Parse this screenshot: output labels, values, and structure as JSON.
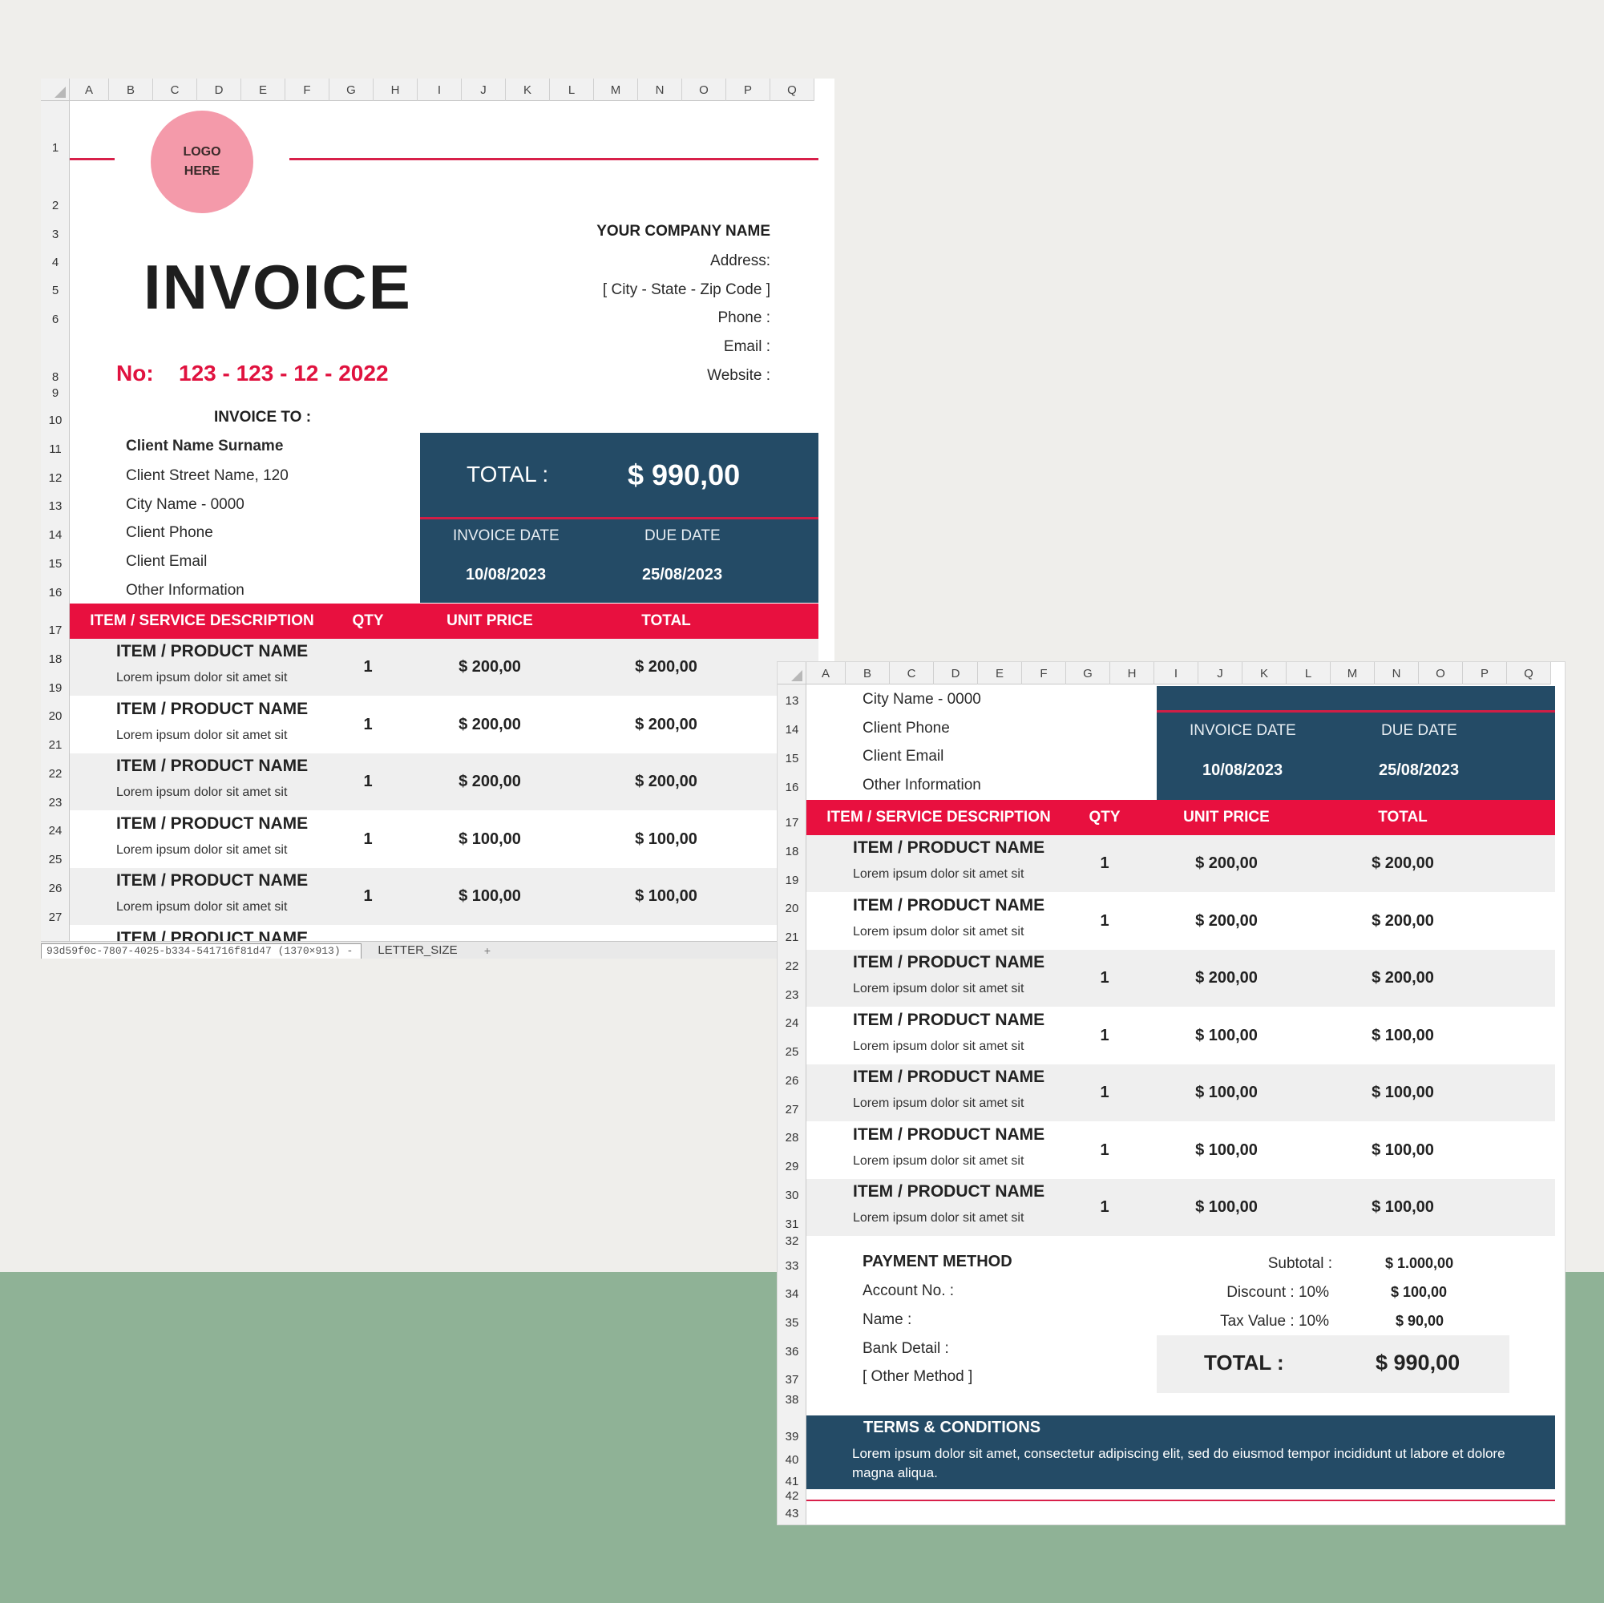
{
  "columns": [
    "A",
    "B",
    "C",
    "D",
    "E",
    "F",
    "G",
    "H",
    "I",
    "J",
    "K",
    "L",
    "M",
    "N",
    "O",
    "P",
    "Q"
  ],
  "logo": {
    "line1": "LOGO",
    "line2": "HERE"
  },
  "invoice_title": "INVOICE",
  "invoice_no": {
    "label": "No:",
    "value": "123 - 123 - 12 - 2022"
  },
  "company": {
    "name": "YOUR COMPANY NAME",
    "address": "Address:",
    "city": "[ City - State - Zip Code ]",
    "phone": "Phone :",
    "email": "Email :",
    "website": "Website :"
  },
  "invoice_to": {
    "label": "INVOICE TO :",
    "name": "Client Name Surname",
    "street": "Client Street Name, 120",
    "city": "City Name - 0000",
    "phone": "Client Phone",
    "email": "Client Email",
    "other": "Other Information"
  },
  "summary_box": {
    "total_label": "TOTAL :",
    "total_value": "$ 990,00",
    "invoice_date_label": "INVOICE DATE",
    "invoice_date": "10/08/2023",
    "due_date_label": "DUE DATE",
    "due_date": "25/08/2023"
  },
  "table_header": {
    "description": "ITEM / SERVICE DESCRIPTION",
    "qty": "QTY",
    "unit_price": "UNIT PRICE",
    "total": "TOTAL"
  },
  "items": [
    {
      "name": "ITEM / PRODUCT NAME",
      "desc": "Lorem ipsum dolor sit amet sit",
      "qty": "1",
      "unit": "$ 200,00",
      "total": "$ 200,00"
    },
    {
      "name": "ITEM / PRODUCT NAME",
      "desc": "Lorem ipsum dolor sit amet sit",
      "qty": "1",
      "unit": "$ 200,00",
      "total": "$ 200,00"
    },
    {
      "name": "ITEM / PRODUCT NAME",
      "desc": "Lorem ipsum dolor sit amet sit",
      "qty": "1",
      "unit": "$ 200,00",
      "total": "$ 200,00"
    },
    {
      "name": "ITEM / PRODUCT NAME",
      "desc": "Lorem ipsum dolor sit amet sit",
      "qty": "1",
      "unit": "$ 100,00",
      "total": "$ 100,00"
    },
    {
      "name": "ITEM / PRODUCT NAME",
      "desc": "Lorem ipsum dolor sit amet sit",
      "qty": "1",
      "unit": "$ 100,00",
      "total": "$ 100,00"
    },
    {
      "name": "ITEM / PRODUCT NAME",
      "desc": "Lorem ipsum dolor sit amet sit",
      "qty": "1",
      "unit": "$ 100,00",
      "total": "$ 100,00"
    },
    {
      "name": "ITEM / PRODUCT NAME",
      "desc": "Lorem ipsum dolor sit amet sit",
      "qty": "1",
      "unit": "$ 100,00",
      "total": "$ 100,00"
    }
  ],
  "sheet_tabs": {
    "file_tab": "93d59f0c-7807-4025-b334-541716f81d47 (1370×913) -",
    "sheet_tab": "LETTER_SIZE",
    "add_tab": "+"
  },
  "payment": {
    "title": "PAYMENT METHOD",
    "account": "Account No. :",
    "name": "Name :",
    "bank": "Bank Detail :",
    "other": "[ Other Method ]"
  },
  "totals": {
    "subtotal_label": "Subtotal :",
    "subtotal": "$ 1.000,00",
    "discount_label": "Discount :  10%",
    "discount": "$ 100,00",
    "tax_label": "Tax Value :  10%",
    "tax": "$ 90,00",
    "total_label": "TOTAL :",
    "total": "$ 990,00"
  },
  "terms": {
    "title": "TERMS & CONDITIONS",
    "text": "Lorem ipsum dolor sit amet, consectetur adipiscing elit, sed do eiusmod tempor incididunt ut labore et dolore magna aliqua."
  },
  "colors": {
    "accent_red": "#e8103f",
    "navy": "#244b66",
    "logo_pink": "#f49aaa",
    "background": "#efeeeb",
    "green_band": "#8fb296"
  }
}
